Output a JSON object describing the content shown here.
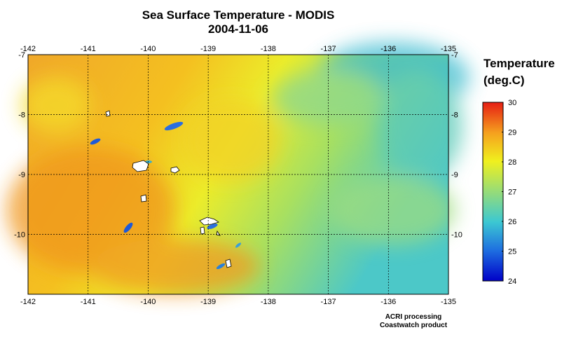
{
  "title": "Sea Surface Temperature - MODIS",
  "date": "2004-11-06",
  "colorbar": {
    "title_line1": "Temperature",
    "title_line2": "(deg.C)",
    "ticks": [
      "30",
      "29",
      "28",
      "27",
      "26",
      "25",
      "24"
    ],
    "min": 24,
    "max": 30,
    "colors": [
      "#0000c8",
      "#1e6ee0",
      "#3cc8d2",
      "#96dc78",
      "#f0f01e",
      "#f5a01e",
      "#e61e14"
    ]
  },
  "credits": {
    "line1": "ACRI processing",
    "line2": "Coastwatch product"
  },
  "map": {
    "lon_ticks": [
      "-142",
      "-141",
      "-140",
      "-139",
      "-138",
      "-137",
      "-136",
      "-135"
    ],
    "lat_ticks_left": [
      "-7",
      "-8",
      "-9",
      "-10"
    ],
    "lat_ticks_right": [
      "-7",
      "-8",
      "-9",
      "-10"
    ],
    "lon_range": [
      -142,
      -135
    ],
    "lat_range": [
      -11,
      -7
    ],
    "land_color": "#ffffff",
    "grid": "dotted"
  }
}
